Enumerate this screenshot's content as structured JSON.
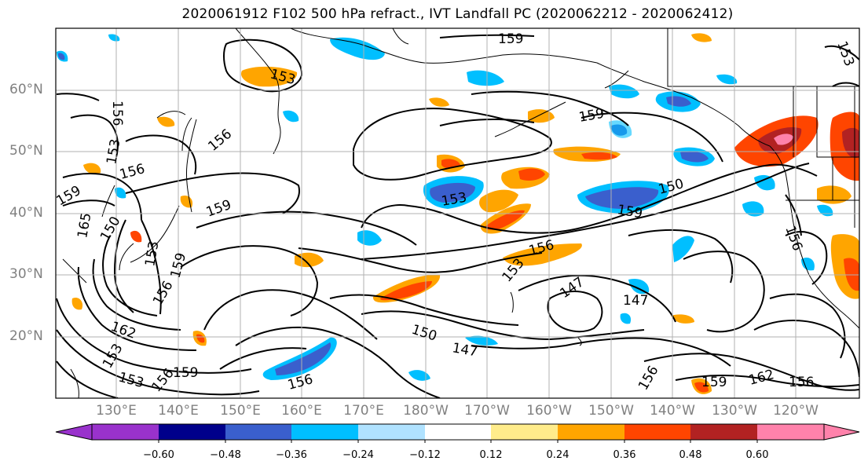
{
  "title": "2020061912 F102 500 hPa refract., IVT Landfall PC (2020062212 - 2020062412)",
  "latitude_labels": [
    "60°N",
    "50°N",
    "40°N",
    "30°N",
    "20°N"
  ],
  "longitude_labels": [
    "130°E",
    "140°E",
    "150°E",
    "160°E",
    "170°E",
    "180°W",
    "170°W",
    "160°W",
    "150°W",
    "140°W",
    "130°W",
    "120°W"
  ],
  "colorbar": {
    "tick_labels": [
      "−0.60",
      "−0.48",
      "−0.36",
      "−0.24",
      "−0.12",
      "0.12",
      "0.24",
      "0.36",
      "0.48",
      "0.60"
    ],
    "colors": [
      "#9932cc",
      "#00008b",
      "#3a5fcd",
      "#00bfff",
      "#b0e2ff",
      "#ffffff",
      "#ffec8b",
      "#ffa500",
      "#ff4500",
      "#b22222",
      "#ff82ab"
    ]
  },
  "contour_labels": [
    "159",
    "153",
    "156",
    "156",
    "153",
    "156",
    "159",
    "150",
    "165",
    "153",
    "159",
    "156",
    "159",
    "162",
    "153",
    "153",
    "156",
    "159",
    "156",
    "150",
    "147",
    "153",
    "156",
    "147",
    "147",
    "159",
    "153",
    "159",
    "150",
    "156",
    "153",
    "156",
    "159",
    "162",
    "156"
  ]
}
